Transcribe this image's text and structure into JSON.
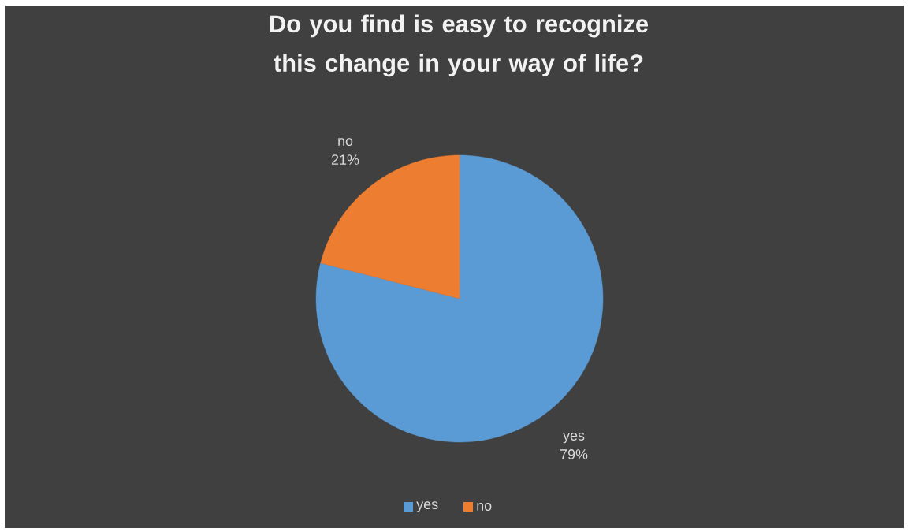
{
  "chart_data": {
    "type": "pie",
    "title": "Do you find is easy to recognize this change in your way of life?",
    "categories": [
      "yes",
      "no"
    ],
    "values": [
      79,
      21
    ],
    "colors": [
      "#5b9bd5",
      "#ed7d31"
    ],
    "value_labels": [
      "79%",
      "21%"
    ],
    "legend": "bottom"
  }
}
